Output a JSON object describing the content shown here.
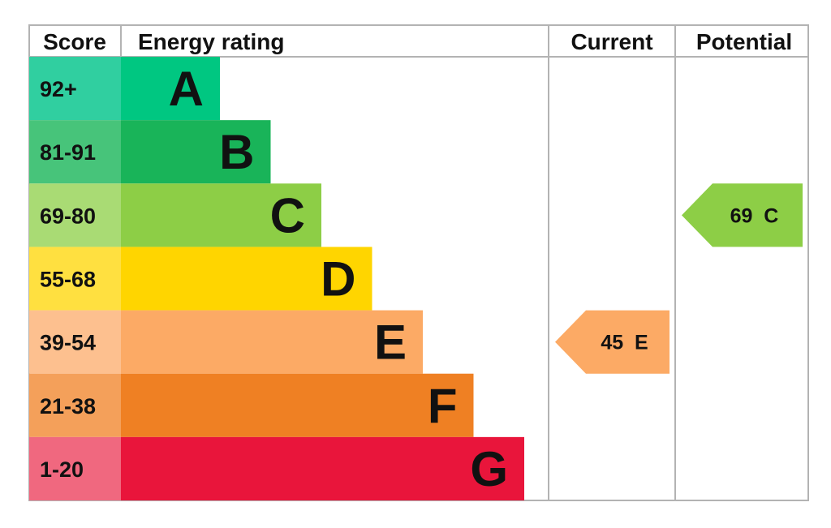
{
  "header": {
    "score": "Score",
    "energy_rating": "Energy rating",
    "current": "Current",
    "potential": "Potential"
  },
  "chart_data": {
    "type": "bar",
    "bands": [
      {
        "score": "92+",
        "letter": "A",
        "band_color": "#00c781",
        "score_color": "#30cfa0"
      },
      {
        "score": "81-91",
        "letter": "B",
        "band_color": "#19b459",
        "score_color": "#47c47a"
      },
      {
        "score": "69-80",
        "letter": "C",
        "band_color": "#8dce46",
        "score_color": "#a9db74"
      },
      {
        "score": "55-68",
        "letter": "D",
        "band_color": "#ffd500",
        "score_color": "#ffe040"
      },
      {
        "score": "39-54",
        "letter": "E",
        "band_color": "#fcaa65",
        "score_color": "#fdc08f"
      },
      {
        "score": "21-38",
        "letter": "F",
        "band_color": "#ef8023",
        "score_color": "#f4a05a"
      },
      {
        "score": "1-20",
        "letter": "G",
        "band_color": "#e9153b",
        "score_color": "#f0687f"
      }
    ],
    "current": {
      "value": 45,
      "letter": "E",
      "label": "45  E",
      "color": "#fcaa65"
    },
    "potential": {
      "value": 69,
      "letter": "C",
      "label": "69  C",
      "color": "#8dce46"
    }
  }
}
